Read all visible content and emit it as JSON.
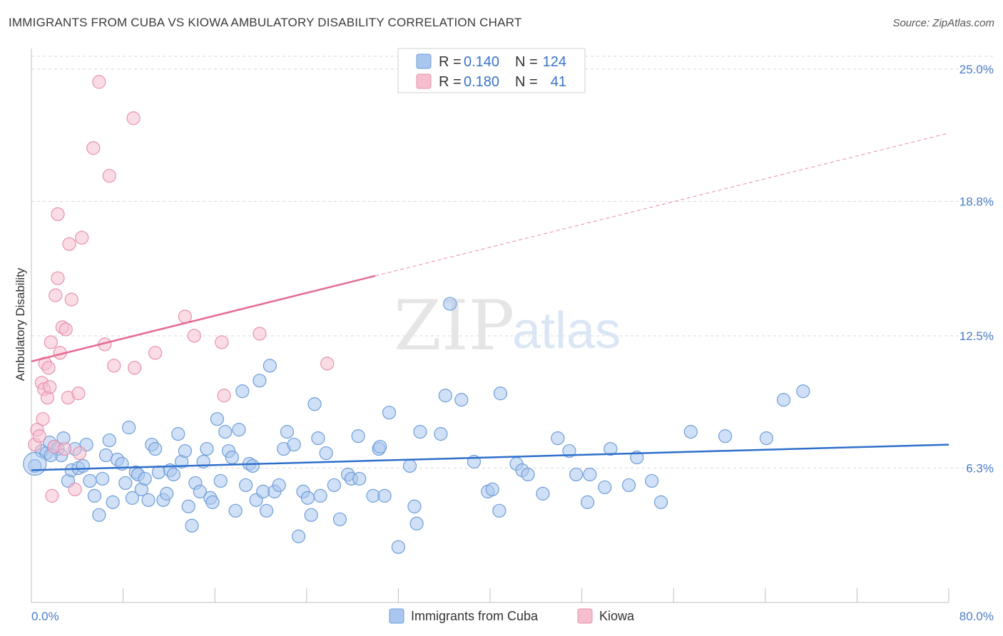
{
  "title": "IMMIGRANTS FROM CUBA VS KIOWA AMBULATORY DISABILITY CORRELATION CHART",
  "source": "Source: ZipAtlas.com",
  "watermark": {
    "zip": "ZIP",
    "atlas": "atlas"
  },
  "colors": {
    "blue_fill": "#a9c6ef",
    "blue_stroke": "#6e9ed8",
    "blue_line": "#2f6fcb",
    "pink_fill": "#f6bfd0",
    "pink_stroke": "#e890ad",
    "pink_line": "#e46b92",
    "grid": "#d8d8d8",
    "axis_label": "#4a7cc7"
  },
  "legend": {
    "rows": [
      {
        "r_label": "R =",
        "r_value": "0.140",
        "n_label": "N =",
        "n_value": "124"
      },
      {
        "r_label": "R =",
        "r_value": "0.180",
        "n_label": "N =",
        "n_value": "41"
      }
    ]
  },
  "chart_data": {
    "type": "scatter",
    "title": "IMMIGRANTS FROM CUBA VS KIOWA AMBULATORY DISABILITY CORRELATION CHART",
    "xlabel": "",
    "ylabel": "Ambulatory Disability",
    "xlim": [
      0,
      80
    ],
    "ylim": [
      0,
      25.9
    ],
    "x_tick_labels": [
      "0.0%",
      "80.0%"
    ],
    "y_ticks": [
      6.3,
      12.5,
      18.8,
      25.0
    ],
    "y_tick_labels": [
      "6.3%",
      "12.5%",
      "18.8%",
      "25.0%"
    ],
    "grid": true,
    "legend_position": "top-center",
    "series": [
      {
        "name": "Immigrants from Cuba",
        "color": "#a9c6ef",
        "r": 0.14,
        "n": 124,
        "trend": {
          "x0": 0,
          "y0": 6.2,
          "x1": 80,
          "y1": 7.4,
          "dashed_from": null
        },
        "points": [
          [
            0.3,
            6.4
          ],
          [
            0.9,
            7.1
          ],
          [
            1.3,
            7.0
          ],
          [
            1.6,
            7.5
          ],
          [
            2.0,
            7.3
          ],
          [
            2.3,
            7.2
          ],
          [
            2.6,
            6.9
          ],
          [
            2.8,
            7.7
          ],
          [
            3.2,
            5.7
          ],
          [
            3.5,
            6.2
          ],
          [
            3.8,
            7.2
          ],
          [
            4.1,
            6.3
          ],
          [
            4.5,
            6.4
          ],
          [
            4.8,
            7.4
          ],
          [
            5.1,
            5.7
          ],
          [
            5.5,
            5.0
          ],
          [
            5.9,
            4.1
          ],
          [
            6.2,
            5.8
          ],
          [
            6.5,
            6.9
          ],
          [
            6.8,
            7.6
          ],
          [
            7.1,
            4.7
          ],
          [
            7.5,
            6.7
          ],
          [
            7.9,
            6.5
          ],
          [
            8.2,
            5.6
          ],
          [
            8.5,
            8.2
          ],
          [
            8.8,
            4.9
          ],
          [
            9.1,
            6.1
          ],
          [
            9.3,
            6.0
          ],
          [
            9.6,
            5.3
          ],
          [
            9.9,
            5.8
          ],
          [
            10.2,
            4.8
          ],
          [
            10.5,
            7.4
          ],
          [
            10.8,
            7.2
          ],
          [
            11.1,
            6.1
          ],
          [
            11.5,
            4.8
          ],
          [
            11.8,
            5.1
          ],
          [
            12.1,
            6.2
          ],
          [
            12.4,
            6.0
          ],
          [
            12.8,
            7.9
          ],
          [
            13.1,
            6.6
          ],
          [
            13.4,
            7.1
          ],
          [
            13.7,
            4.5
          ],
          [
            14.0,
            3.6
          ],
          [
            14.3,
            5.6
          ],
          [
            14.7,
            5.2
          ],
          [
            15.0,
            6.6
          ],
          [
            15.3,
            7.2
          ],
          [
            15.6,
            4.9
          ],
          [
            15.8,
            4.7
          ],
          [
            16.2,
            8.6
          ],
          [
            16.5,
            5.7
          ],
          [
            16.9,
            8.0
          ],
          [
            17.2,
            7.1
          ],
          [
            17.5,
            6.8
          ],
          [
            17.8,
            4.3
          ],
          [
            18.1,
            8.1
          ],
          [
            18.4,
            9.9
          ],
          [
            18.7,
            5.5
          ],
          [
            19.0,
            6.5
          ],
          [
            19.3,
            6.4
          ],
          [
            19.6,
            4.8
          ],
          [
            19.9,
            10.4
          ],
          [
            20.2,
            5.2
          ],
          [
            20.5,
            4.3
          ],
          [
            20.8,
            11.1
          ],
          [
            21.2,
            5.2
          ],
          [
            21.6,
            5.5
          ],
          [
            22.0,
            7.2
          ],
          [
            22.3,
            8.0
          ],
          [
            22.9,
            7.4
          ],
          [
            23.3,
            3.1
          ],
          [
            23.7,
            5.2
          ],
          [
            24.1,
            4.9
          ],
          [
            24.4,
            4.1
          ],
          [
            24.7,
            9.3
          ],
          [
            25.2,
            5.0
          ],
          [
            25.0,
            7.7
          ],
          [
            25.7,
            7.0
          ],
          [
            26.4,
            5.5
          ],
          [
            26.9,
            3.9
          ],
          [
            27.6,
            6.0
          ],
          [
            27.9,
            5.8
          ],
          [
            28.5,
            7.8
          ],
          [
            28.6,
            5.8
          ],
          [
            29.8,
            5.0
          ],
          [
            30.3,
            7.2
          ],
          [
            30.4,
            7.3
          ],
          [
            30.8,
            5.0
          ],
          [
            31.2,
            8.9
          ],
          [
            32.0,
            2.6
          ],
          [
            33.0,
            6.4
          ],
          [
            33.4,
            4.5
          ],
          [
            33.6,
            3.7
          ],
          [
            33.9,
            8.0
          ],
          [
            35.7,
            7.9
          ],
          [
            36.1,
            9.7
          ],
          [
            36.5,
            14.0
          ],
          [
            37.5,
            9.5
          ],
          [
            38.6,
            6.6
          ],
          [
            39.8,
            5.2
          ],
          [
            40.2,
            5.3
          ],
          [
            40.8,
            4.3
          ],
          [
            40.9,
            9.8
          ],
          [
            42.3,
            6.5
          ],
          [
            42.8,
            6.2
          ],
          [
            43.3,
            6.0
          ],
          [
            44.6,
            5.1
          ],
          [
            45.9,
            7.7
          ],
          [
            46.9,
            7.1
          ],
          [
            47.5,
            6.0
          ],
          [
            48.5,
            4.7
          ],
          [
            48.7,
            6.0
          ],
          [
            50.0,
            5.4
          ],
          [
            50.5,
            7.2
          ],
          [
            52.1,
            5.5
          ],
          [
            52.8,
            6.8
          ],
          [
            54.1,
            5.7
          ],
          [
            54.9,
            4.7
          ],
          [
            57.5,
            8.0
          ],
          [
            60.5,
            7.8
          ],
          [
            64.1,
            7.7
          ],
          [
            65.6,
            9.5
          ],
          [
            67.3,
            9.9
          ],
          [
            1.7,
            6.9
          ]
        ]
      },
      {
        "name": "Kiowa",
        "color": "#f6bfd0",
        "r": 0.18,
        "n": 41,
        "trend": {
          "x0": 0,
          "y0": 11.3,
          "x1": 80,
          "y1": 22.0,
          "dashed_from": 30.0
        },
        "points": [
          [
            0.3,
            7.4
          ],
          [
            0.5,
            8.1
          ],
          [
            0.7,
            7.8
          ],
          [
            0.9,
            10.3
          ],
          [
            1.0,
            8.6
          ],
          [
            1.1,
            10.0
          ],
          [
            1.2,
            11.2
          ],
          [
            1.4,
            9.6
          ],
          [
            1.5,
            11.0
          ],
          [
            1.6,
            10.1
          ],
          [
            1.7,
            12.2
          ],
          [
            1.8,
            5.0
          ],
          [
            2.0,
            7.3
          ],
          [
            2.1,
            14.4
          ],
          [
            2.3,
            15.2
          ],
          [
            2.3,
            18.2
          ],
          [
            2.5,
            11.7
          ],
          [
            2.7,
            12.9
          ],
          [
            2.9,
            7.2
          ],
          [
            3.0,
            12.8
          ],
          [
            3.2,
            9.6
          ],
          [
            3.3,
            16.8
          ],
          [
            3.5,
            14.2
          ],
          [
            3.8,
            5.3
          ],
          [
            4.1,
            9.8
          ],
          [
            4.2,
            7.0
          ],
          [
            4.4,
            17.1
          ],
          [
            5.4,
            21.3
          ],
          [
            5.9,
            24.4
          ],
          [
            6.4,
            12.1
          ],
          [
            6.8,
            20.0
          ],
          [
            7.2,
            11.1
          ],
          [
            8.9,
            22.7
          ],
          [
            9.0,
            11.0
          ],
          [
            10.8,
            11.7
          ],
          [
            13.4,
            13.4
          ],
          [
            14.2,
            12.5
          ],
          [
            16.6,
            12.2
          ],
          [
            16.8,
            9.7
          ],
          [
            19.9,
            12.6
          ],
          [
            25.8,
            11.2
          ]
        ]
      }
    ]
  },
  "axis": {
    "y_title": "Ambulatory Disability",
    "x_left": "0.0%",
    "x_right": "80.0%"
  },
  "bottom_legend": [
    {
      "label": "Immigrants from Cuba"
    },
    {
      "label": "Kiowa"
    }
  ]
}
